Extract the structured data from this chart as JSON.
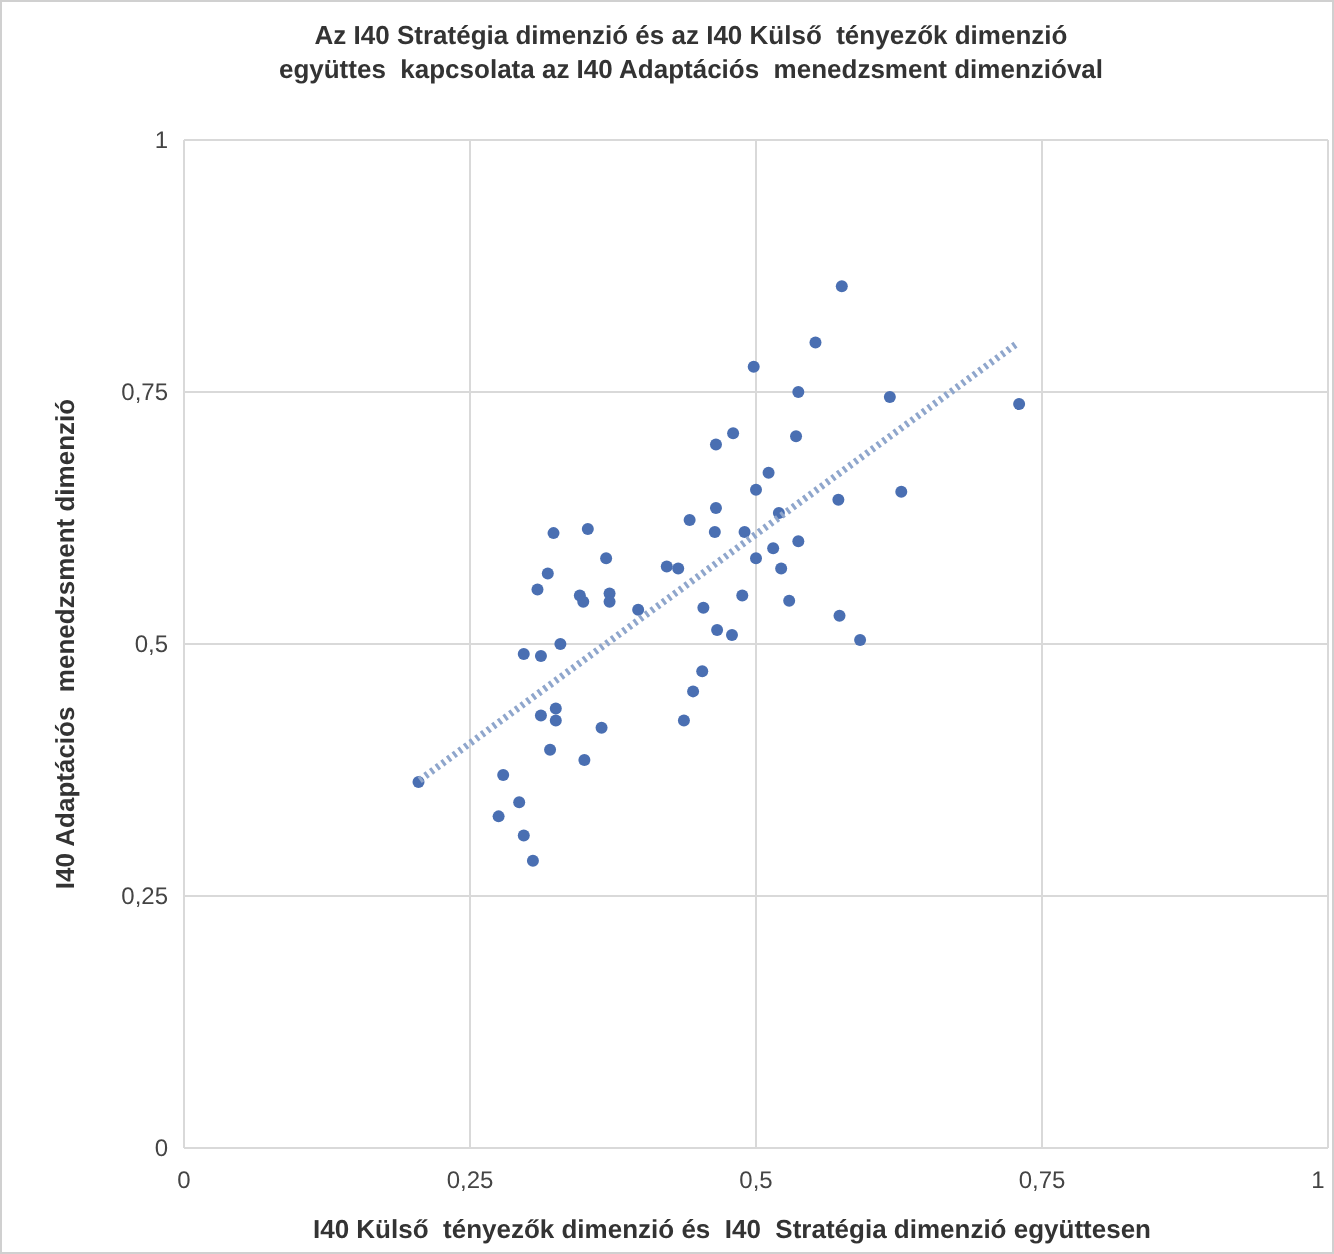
{
  "chart_data": {
    "type": "scatter",
    "title": "Az I40 Stratégia dimenzió és az I40 Külső  tényezők dimenzió\negyüttes  kapcsolata az I40 Adaptációs  menedzsment dimenzióval",
    "xlabel": "I40 Külső  tényezők dimenzió és  I40  Stratégia dimenzió együttesen",
    "ylabel": "I40 Adaptációs  menedzsment dimenzió",
    "xlim": [
      0,
      1
    ],
    "ylim": [
      0,
      1
    ],
    "xticks": [
      0,
      {
        "value": 0.25,
        "label": "0,25"
      },
      {
        "value": 0.5,
        "label": "0,5"
      },
      {
        "value": 0.75,
        "label": "0,75"
      },
      1
    ],
    "yticks": [
      0,
      {
        "value": 0.25,
        "label": "0,25"
      },
      {
        "value": 0.5,
        "label": "0,5"
      },
      {
        "value": 0.75,
        "label": "0,75"
      },
      1
    ],
    "grid": true,
    "marker": "circle",
    "series": [
      {
        "color": "#4a6fb2",
        "x": [
          0.323,
          0.353,
          0.369,
          0.318,
          0.309,
          0.346,
          0.349,
          0.372,
          0.372,
          0.397,
          0.422,
          0.432,
          0.442,
          0.464,
          0.49,
          0.5,
          0.515,
          0.454,
          0.488,
          0.466,
          0.479,
          0.329,
          0.297,
          0.312,
          0.453,
          0.445,
          0.437,
          0.325,
          0.325,
          0.312,
          0.365,
          0.32,
          0.35,
          0.205,
          0.279,
          0.293,
          0.275,
          0.297,
          0.305,
          0.575,
          0.552,
          0.498,
          0.537,
          0.617,
          0.73,
          0.48,
          0.465,
          0.465,
          0.535,
          0.511,
          0.5,
          0.627,
          0.572,
          0.52,
          0.537,
          0.522,
          0.529,
          0.573,
          0.591
        ],
        "values": [
          0.61,
          0.614,
          0.585,
          0.57,
          0.554,
          0.548,
          0.542,
          0.55,
          0.542,
          0.534,
          0.577,
          0.575,
          0.623,
          0.611,
          0.611,
          0.585,
          0.595,
          0.536,
          0.548,
          0.514,
          0.509,
          0.5,
          0.49,
          0.488,
          0.473,
          0.453,
          0.424,
          0.436,
          0.424,
          0.429,
          0.417,
          0.395,
          0.385,
          0.363,
          0.37,
          0.343,
          0.329,
          0.31,
          0.285,
          0.855,
          0.799,
          0.775,
          0.75,
          0.745,
          0.738,
          0.709,
          0.698,
          0.635,
          0.706,
          0.67,
          0.653,
          0.651,
          0.643,
          0.63,
          0.602,
          0.575,
          0.543,
          0.528,
          0.504
        ]
      },
      {
        "type": "line",
        "color": "#8fa6cc",
        "line_style": "dotted",
        "marker": "none",
        "x": [
          0.206,
          0.728
        ],
        "values": [
          0.365,
          0.798
        ]
      }
    ]
  }
}
